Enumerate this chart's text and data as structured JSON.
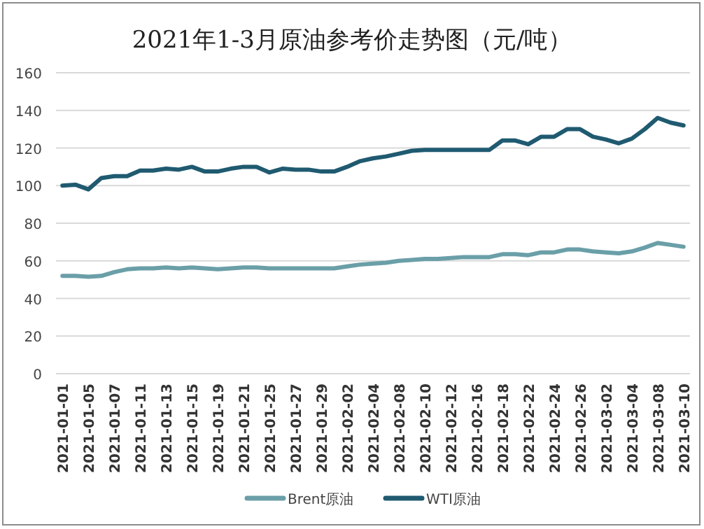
{
  "chart_data": {
    "type": "line",
    "title": "2021年1-3月原油参考价走势图（元/吨）",
    "categories": [
      "2021-01-01",
      null,
      "2021-01-05",
      null,
      "2021-01-07",
      null,
      "2021-01-11",
      null,
      "2021-01-13",
      null,
      "2021-01-15",
      null,
      "2021-01-19",
      null,
      "2021-01-21",
      null,
      "2021-01-25",
      null,
      "2021-01-27",
      null,
      "2021-01-29",
      null,
      "2021-02-02",
      null,
      "2021-02-04",
      null,
      "2021-02-08",
      null,
      "2021-02-10",
      null,
      "2021-02-12",
      null,
      "2021-02-16",
      null,
      "2021-02-18",
      null,
      "2021-02-22",
      null,
      "2021-02-24",
      null,
      "2021-02-26",
      null,
      "2021-03-02",
      null,
      "2021-03-04",
      null,
      "2021-03-08",
      null,
      "2021-03-10"
    ],
    "series": [
      {
        "name": "Brent原油",
        "color": "#6a9fa8",
        "values": [
          52,
          52,
          51.5,
          52,
          54,
          55.5,
          56,
          56,
          56.5,
          56,
          56.5,
          56,
          55.5,
          56,
          56.5,
          56.5,
          56,
          56,
          56,
          56,
          56,
          56,
          57,
          58,
          58.5,
          59,
          60,
          60.5,
          61,
          61,
          61.5,
          62,
          62,
          62,
          63.5,
          63.5,
          63,
          64.5,
          64.5,
          66,
          66,
          65,
          64.5,
          64,
          65,
          67,
          69.5,
          68.5,
          67.5
        ]
      },
      {
        "name": "WTI原油",
        "color": "#1f5a70",
        "values": [
          100,
          100.5,
          98,
          104,
          105,
          105,
          108,
          108,
          109,
          108.5,
          110,
          107.5,
          107.5,
          109,
          110,
          110,
          107,
          109,
          108.5,
          108.5,
          107.5,
          107.5,
          110,
          113,
          114.5,
          115.5,
          117,
          118.5,
          119,
          119,
          119,
          119,
          119,
          119,
          124,
          124,
          122,
          126,
          126,
          130,
          130,
          126,
          124.5,
          122.5,
          125,
          130,
          136,
          133.5,
          132
        ]
      }
    ],
    "ylim": [
      0,
      160
    ],
    "yticks": [
      0,
      20,
      40,
      60,
      80,
      100,
      120,
      140,
      160
    ],
    "grid": "y",
    "legend": "bottom"
  }
}
